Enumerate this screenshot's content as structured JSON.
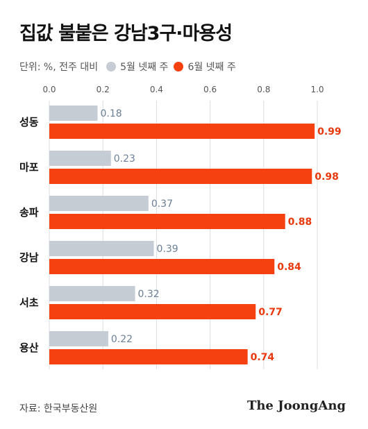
{
  "title": "집값 불붙은 강남3구·마용성",
  "subtitle": "단위: %, 전주 대비",
  "legend": [
    {
      "label": "5월 넷째 주",
      "color": "#c5ccd4"
    },
    {
      "label": "6월 넷째 주",
      "color": "#f5400f"
    }
  ],
  "source": "자료: 한국부동산원",
  "logo": "The JoongAng",
  "chart_data": {
    "type": "bar",
    "orientation": "horizontal",
    "categories": [
      "성동",
      "마포",
      "송파",
      "강남",
      "서초",
      "용산"
    ],
    "series": [
      {
        "name": "5월 넷째 주",
        "values": [
          0.18,
          0.23,
          0.37,
          0.39,
          0.32,
          0.22
        ],
        "color": "#c5ccd4",
        "label_color": "#6b7f95"
      },
      {
        "name": "6월 넷째 주",
        "values": [
          0.99,
          0.98,
          0.88,
          0.84,
          0.77,
          0.74
        ],
        "color": "#f5400f",
        "label_color": "#e8380c"
      }
    ],
    "xlim": [
      0,
      1.0
    ],
    "xticks": [
      "0.0",
      "0.2",
      "0.4",
      "0.6",
      "0.8",
      "1.0"
    ],
    "grid": true,
    "legend_position": "top"
  }
}
